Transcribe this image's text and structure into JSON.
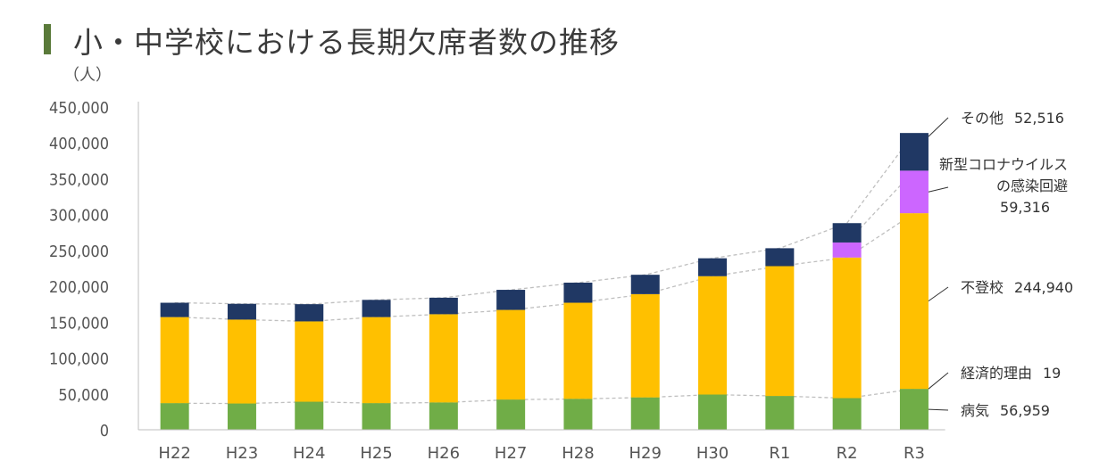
{
  "title": "小・中学校における長期欠席者数の推移",
  "colors": {
    "title_bar": "#5a7a3a",
    "病気": "#70ad47",
    "経済的理由": "#70ad47",
    "不登校": "#ffc000",
    "新型コロナウイルスの感染回避": "#cc66ff",
    "その他": "#203864",
    "guide": "#bfbfbf"
  },
  "chart_data": {
    "type": "bar",
    "stacked": true,
    "title": "小・中学校における長期欠席者数の推移",
    "ylabel": "（人）",
    "xlabel": "",
    "ylim": [
      0,
      450000
    ],
    "yticks": [
      0,
      50000,
      100000,
      150000,
      200000,
      250000,
      300000,
      350000,
      400000,
      450000
    ],
    "ytick_labels": [
      "0",
      "50,000",
      "100,000",
      "150,000",
      "200,000",
      "250,000",
      "300,000",
      "350,000",
      "400,000",
      "450,000"
    ],
    "grid": false,
    "categories": [
      "H22",
      "H23",
      "H24",
      "H25",
      "H26",
      "H27",
      "H28",
      "H29",
      "H30",
      "R1",
      "R2",
      "R3"
    ],
    "series": [
      {
        "name": "病気",
        "values": [
          37000,
          36500,
          39000,
          37000,
          38000,
          42000,
          43000,
          45000,
          49000,
          47000,
          44000,
          56959
        ]
      },
      {
        "name": "経済的理由",
        "values": [
          100,
          100,
          100,
          100,
          100,
          100,
          100,
          100,
          100,
          100,
          100,
          19
        ]
      },
      {
        "name": "不登校",
        "values": [
          120000,
          117000,
          112000,
          120000,
          123000,
          125000,
          134000,
          144000,
          165000,
          181000,
          196000,
          244940
        ]
      },
      {
        "name": "新型コロナウイルスの感染回避",
        "values": [
          0,
          0,
          0,
          0,
          0,
          0,
          0,
          0,
          0,
          0,
          21000,
          59316
        ]
      },
      {
        "name": "その他",
        "values": [
          20000,
          22000,
          24000,
          24000,
          23000,
          28000,
          28000,
          27000,
          25000,
          25000,
          27000,
          52516
        ]
      }
    ],
    "annotations": [
      {
        "series": "その他",
        "label": "その他",
        "value": "52,516"
      },
      {
        "series": "新型コロナウイルスの感染回避",
        "label_lines": [
          "新型コロナウイルス",
          "の感染回避"
        ],
        "value": "59,316"
      },
      {
        "series": "不登校",
        "label": "不登校",
        "value": "244,940"
      },
      {
        "series": "経済的理由",
        "label": "経済的理由",
        "value": "19"
      },
      {
        "series": "病気",
        "label": "病気",
        "value": "56,959"
      }
    ]
  }
}
